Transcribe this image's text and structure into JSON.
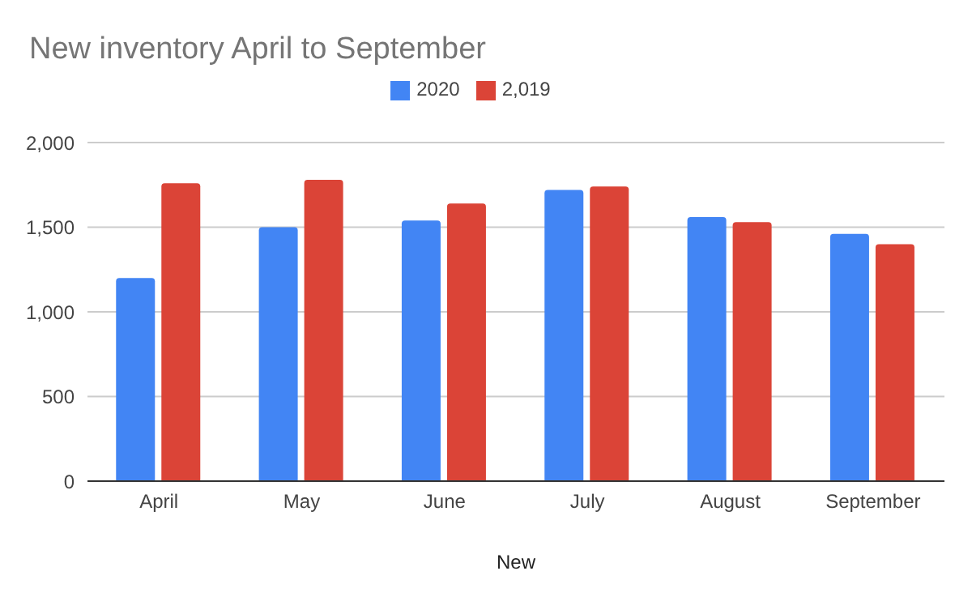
{
  "chart_data": {
    "type": "bar",
    "title": "New inventory April to September",
    "xlabel": "New",
    "categories": [
      "April",
      "May",
      "June",
      "July",
      "August",
      "September"
    ],
    "series": [
      {
        "name": "2020",
        "color": "#4285f4",
        "values": [
          1200,
          1500,
          1540,
          1720,
          1560,
          1460
        ]
      },
      {
        "name": "2,019",
        "color": "#db4437",
        "values": [
          1760,
          1780,
          1640,
          1740,
          1530,
          1400
        ]
      }
    ],
    "ylim": [
      0,
      2000
    ],
    "yticks": [
      0,
      500,
      {
        "value": 1000,
        "label": "1,000"
      },
      {
        "value": 1500,
        "label": "1,500"
      },
      {
        "value": 2000,
        "label": "2,000"
      }
    ],
    "grid": "y",
    "legend": "top"
  }
}
